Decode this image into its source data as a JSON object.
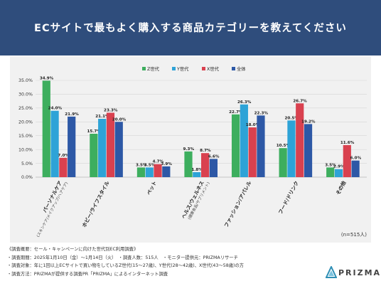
{
  "header": {
    "title": "ECサイトで最もよく購入する商品カテゴリーを教えてください"
  },
  "colors": {
    "header_bg": "#2f4d7c",
    "z": "#3dae5e",
    "y": "#2ea3d7",
    "x": "#d9414f",
    "all": "#2d58a6"
  },
  "chart_data": {
    "type": "bar",
    "categories": [
      {
        "name": "パーソナルケア",
        "sub": "(スキンケア/メイクアップ/ヘアケア)"
      },
      {
        "name": "ホビー/ライフスタイル",
        "sub": ""
      },
      {
        "name": "ペット",
        "sub": ""
      },
      {
        "name": "ヘルス/ウェルネス",
        "sub": "(健康食品/サプリメント)"
      },
      {
        "name": "ファッション/アパレル",
        "sub": ""
      },
      {
        "name": "フード/ドリンク",
        "sub": ""
      },
      {
        "name": "その他",
        "sub": ""
      }
    ],
    "series": [
      {
        "name": "Z世代",
        "values": [
          34.9,
          15.7,
          3.5,
          9.3,
          22.7,
          10.5,
          3.5
        ]
      },
      {
        "name": "Y世代",
        "values": [
          24.0,
          21.1,
          3.5,
          1.8,
          26.3,
          20.5,
          2.9
        ]
      },
      {
        "name": "X世代",
        "values": [
          7.0,
          23.3,
          4.7,
          8.7,
          18.0,
          26.7,
          11.6
        ]
      },
      {
        "name": "全体",
        "values": [
          21.9,
          20.0,
          3.9,
          6.6,
          22.3,
          19.2,
          6.0
        ]
      }
    ],
    "ylim": [
      0,
      35
    ],
    "yticks": [
      "0.0%",
      "5.0%",
      "10.0%",
      "15.0%",
      "20.0%",
      "25.0%",
      "30.0%",
      "35.0%"
    ],
    "legend_position": "top-center",
    "grid": true
  },
  "note": "(n=515人)",
  "footer": {
    "lines": [
      "《調査概要：セール・キャンペーンに向けた世代別EC利用調査》",
      "・調査期間：2025年1月10日（金）〜1月14日（火）　・調査人数：515人　・モニター提供元：PRIZMAリサーチ",
      "・調査対象：年に1回以上ECサイトで買い物をしているZ世代(15〜27歳)、Y世代(28〜42歳)、X世代(43〜58歳)の方",
      "・調査方法：PRIZMAが提供する調査PR「PRIZMA」によるインターネット調査"
    ]
  },
  "logo": {
    "text": "PRIZMA"
  }
}
